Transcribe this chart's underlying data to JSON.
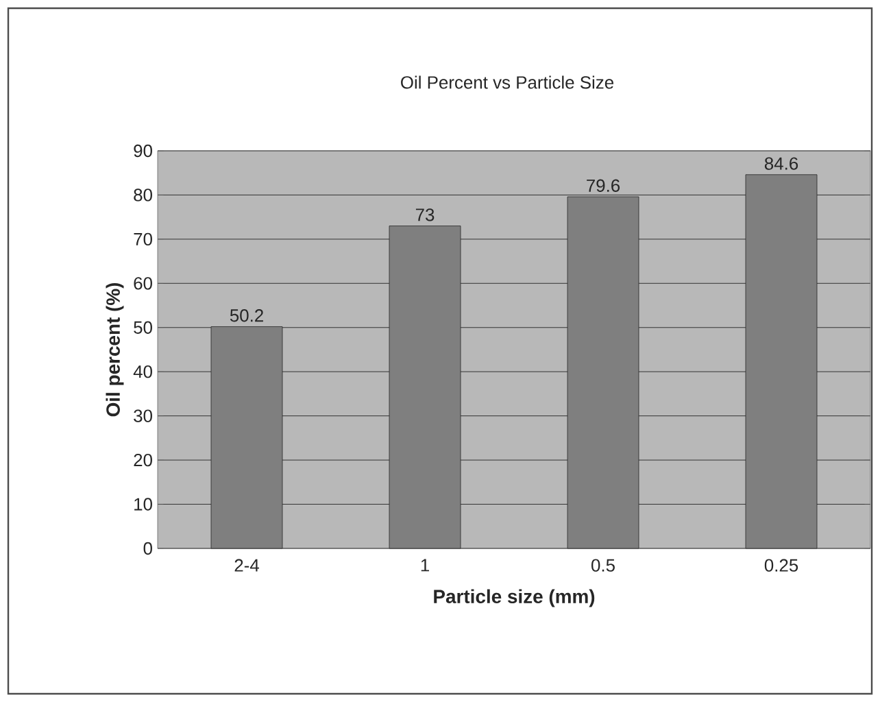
{
  "chart_data": {
    "type": "bar",
    "title": "Oil Percent vs Particle Size",
    "xlabel": "Particle size (mm)",
    "ylabel": "Oil percent (%)",
    "categories": [
      "2-4",
      "1",
      "0.5",
      "0.25"
    ],
    "values": [
      50.2,
      73,
      79.6,
      84.6
    ],
    "color": "#7f7f7f",
    "ylim": [
      0,
      90
    ],
    "yticks": [
      0,
      10,
      20,
      30,
      40,
      50,
      60,
      70,
      80,
      90
    ],
    "grid": "y",
    "data_labels": true
  }
}
